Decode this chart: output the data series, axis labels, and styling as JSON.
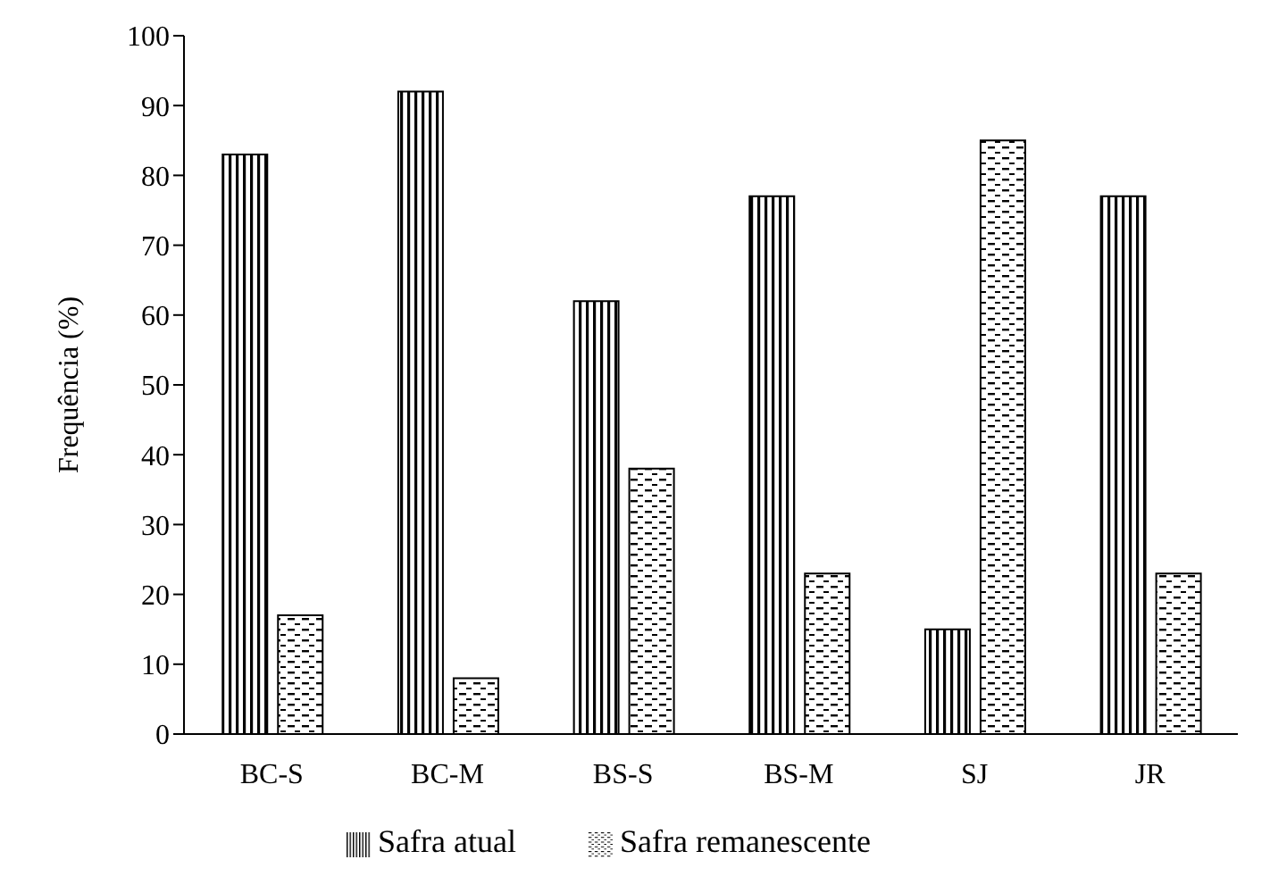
{
  "chart_data": {
    "type": "bar",
    "ylabel": "Frequência (%)",
    "categories": [
      "BC-S",
      "BC-M",
      "BS-S",
      "BS-M",
      "SJ",
      "JR"
    ],
    "series": [
      {
        "name": "Safra atual",
        "color": "#000000",
        "values": [
          83,
          92,
          62,
          77,
          15,
          77
        ]
      },
      {
        "name": "Safra remanescente",
        "color": "#000000",
        "values": [
          17,
          8,
          38,
          23,
          85,
          23
        ]
      }
    ],
    "ylim": [
      0,
      100
    ],
    "yticks": [
      0,
      10,
      20,
      30,
      40,
      50,
      60,
      70,
      80,
      90,
      100
    ],
    "grid": false,
    "legend": "bottom"
  }
}
